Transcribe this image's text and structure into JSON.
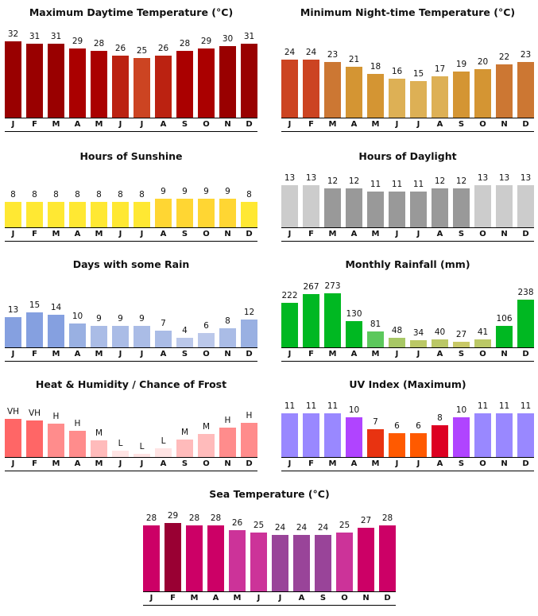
{
  "months": [
    "J",
    "F",
    "M",
    "A",
    "M",
    "J",
    "J",
    "A",
    "S",
    "O",
    "N",
    "D"
  ],
  "chart_data": [
    {
      "id": "max-temp",
      "type": "bar",
      "title": "Maximum Daytime Temperature (°C)",
      "categories": [
        "J",
        "F",
        "M",
        "A",
        "M",
        "J",
        "J",
        "A",
        "S",
        "O",
        "N",
        "D"
      ],
      "values": [
        32,
        31,
        31,
        29,
        28,
        26,
        25,
        26,
        28,
        29,
        30,
        31
      ],
      "labels": [
        "32",
        "31",
        "31",
        "29",
        "28",
        "26",
        "25",
        "26",
        "28",
        "29",
        "30",
        "31"
      ],
      "colors": [
        "#990000",
        "#990000",
        "#990000",
        "#aa0000",
        "#aa0000",
        "#bb2211",
        "#cc4422",
        "#bb2211",
        "#aa0000",
        "#aa0000",
        "#990000",
        "#990000"
      ],
      "xlabel": "",
      "ylabel": "",
      "ylim": [
        0,
        32
      ]
    },
    {
      "id": "min-temp",
      "type": "bar",
      "title": "Minimum Night-time Temperature (°C)",
      "categories": [
        "J",
        "F",
        "M",
        "A",
        "M",
        "J",
        "J",
        "A",
        "S",
        "O",
        "N",
        "D"
      ],
      "values": [
        24,
        24,
        23,
        21,
        18,
        16,
        15,
        17,
        19,
        20,
        22,
        23
      ],
      "labels": [
        "24",
        "24",
        "23",
        "21",
        "18",
        "16",
        "15",
        "17",
        "19",
        "20",
        "22",
        "23"
      ],
      "colors": [
        "#cc4422",
        "#cc4422",
        "#cc7733",
        "#d49533",
        "#d49533",
        "#ddb055",
        "#ddb055",
        "#ddb055",
        "#d49533",
        "#d49533",
        "#cc7733",
        "#cc7733"
      ],
      "xlabel": "",
      "ylabel": "",
      "ylim": [
        0,
        32
      ]
    },
    {
      "id": "sunshine",
      "type": "bar",
      "title": "Hours of Sunshine",
      "categories": [
        "J",
        "F",
        "M",
        "A",
        "M",
        "J",
        "J",
        "A",
        "S",
        "O",
        "N",
        "D"
      ],
      "values": [
        8,
        8,
        8,
        8,
        8,
        8,
        8,
        9,
        9,
        9,
        9,
        8
      ],
      "labels": [
        "8",
        "8",
        "8",
        "8",
        "8",
        "8",
        "8",
        "9",
        "9",
        "9",
        "9",
        "8"
      ],
      "colors": [
        "#ffe833",
        "#ffe833",
        "#ffe833",
        "#ffe833",
        "#ffe833",
        "#ffe833",
        "#ffe833",
        "#ffd633",
        "#ffd633",
        "#ffd633",
        "#ffd633",
        "#ffe833"
      ],
      "xlabel": "",
      "ylabel": "",
      "ylim": [
        0,
        14
      ]
    },
    {
      "id": "daylight",
      "type": "bar",
      "title": "Hours of Daylight",
      "categories": [
        "J",
        "F",
        "M",
        "A",
        "M",
        "J",
        "J",
        "A",
        "S",
        "O",
        "N",
        "D"
      ],
      "values": [
        13,
        13,
        12,
        12,
        11,
        11,
        11,
        12,
        12,
        13,
        13,
        13
      ],
      "labels": [
        "13",
        "13",
        "12",
        "12",
        "11",
        "11",
        "11",
        "12",
        "12",
        "13",
        "13",
        "13"
      ],
      "colors": [
        "#cccccc",
        "#cccccc",
        "#999999",
        "#999999",
        "#999999",
        "#999999",
        "#999999",
        "#999999",
        "#999999",
        "#cccccc",
        "#cccccc",
        "#cccccc"
      ],
      "xlabel": "",
      "ylabel": "",
      "ylim": [
        0,
        14
      ]
    },
    {
      "id": "rain-days",
      "type": "bar",
      "title": "Days with some Rain",
      "categories": [
        "J",
        "F",
        "M",
        "A",
        "M",
        "J",
        "J",
        "A",
        "S",
        "O",
        "N",
        "D"
      ],
      "values": [
        13,
        15,
        14,
        10,
        9,
        9,
        9,
        7,
        4,
        6,
        8,
        12
      ],
      "labels": [
        "13",
        "15",
        "14",
        "10",
        "9",
        "9",
        "9",
        "7",
        "4",
        "6",
        "8",
        "12"
      ],
      "colors": [
        "#85a0e0",
        "#85a0e0",
        "#85a0e0",
        "#99b0e2",
        "#aabce6",
        "#aabce6",
        "#aabce6",
        "#aabce6",
        "#bbc8ea",
        "#bbc8ea",
        "#aabce6",
        "#99b0e2"
      ],
      "xlabel": "",
      "ylabel": "",
      "ylim": [
        0,
        15
      ]
    },
    {
      "id": "rainfall",
      "type": "bar",
      "title": "Monthly Rainfall (mm)",
      "categories": [
        "J",
        "F",
        "M",
        "A",
        "M",
        "J",
        "J",
        "A",
        "S",
        "O",
        "N",
        "D"
      ],
      "values": [
        222,
        267,
        273,
        130,
        81,
        48,
        34,
        40,
        27,
        41,
        106,
        238
      ],
      "labels": [
        "222",
        "267",
        "273",
        "130",
        "81",
        "48",
        "34",
        "40",
        "27",
        "41",
        "106",
        "238"
      ],
      "colors": [
        "#00b822",
        "#00b822",
        "#00b822",
        "#00b822",
        "#5cc85c",
        "#a8c866",
        "#bbc866",
        "#bbc866",
        "#c8c866",
        "#bbc866",
        "#00b822",
        "#00b822"
      ],
      "xlabel": "",
      "ylabel": "",
      "ylim": [
        0,
        273
      ]
    },
    {
      "id": "heat-humidity",
      "type": "bar",
      "title": "Heat & Humidity / Chance of Frost",
      "categories": [
        "J",
        "F",
        "M",
        "A",
        "M",
        "J",
        "J",
        "A",
        "S",
        "O",
        "N",
        "D"
      ],
      "values": [
        48,
        46,
        42,
        33,
        21,
        8,
        4,
        11,
        22,
        29,
        37,
        43
      ],
      "labels": [
        "VH",
        "VH",
        "H",
        "H",
        "M",
        "L",
        "L",
        "L",
        "M",
        "M",
        "H",
        "H"
      ],
      "colors": [
        "#ff6666",
        "#ff6666",
        "#ff8c8c",
        "#ff8c8c",
        "#ffbbbb",
        "#ffe4e4",
        "#ffe4e4",
        "#ffe4e4",
        "#ffbbbb",
        "#ffbbbb",
        "#ff8c8c",
        "#ff8c8c"
      ],
      "xlabel": "",
      "ylabel": "",
      "ylim": [
        0,
        55
      ]
    },
    {
      "id": "uv-index",
      "type": "bar",
      "title": "UV Index (Maximum)",
      "categories": [
        "J",
        "F",
        "M",
        "A",
        "M",
        "J",
        "J",
        "A",
        "S",
        "O",
        "N",
        "D"
      ],
      "values": [
        11,
        11,
        11,
        10,
        7,
        6,
        6,
        8,
        10,
        11,
        11,
        11
      ],
      "labels": [
        "11",
        "11",
        "11",
        "10",
        "7",
        "6",
        "6",
        "8",
        "10",
        "11",
        "11",
        "11"
      ],
      "colors": [
        "#9988ff",
        "#9988ff",
        "#9988ff",
        "#b044ff",
        "#e83311",
        "#ff5a00",
        "#ff5a00",
        "#dd0022",
        "#b044ff",
        "#9988ff",
        "#9988ff",
        "#9988ff"
      ],
      "xlabel": "",
      "ylabel": "",
      "ylim": [
        0,
        11
      ]
    },
    {
      "id": "sea-temp",
      "type": "bar",
      "title": "Sea Temperature (°C)",
      "categories": [
        "J",
        "F",
        "M",
        "A",
        "M",
        "J",
        "J",
        "A",
        "S",
        "O",
        "N",
        "D"
      ],
      "values": [
        28,
        29,
        28,
        28,
        26,
        25,
        24,
        24,
        24,
        25,
        27,
        28
      ],
      "labels": [
        "28",
        "29",
        "28",
        "28",
        "26",
        "25",
        "24",
        "24",
        "24",
        "25",
        "27",
        "28"
      ],
      "colors": [
        "#cc0066",
        "#990033",
        "#cc0066",
        "#cc0066",
        "#cc3399",
        "#cc3399",
        "#994499",
        "#994499",
        "#994499",
        "#cc3399",
        "#cc0066",
        "#cc0066"
      ],
      "xlabel": "",
      "ylabel": "",
      "ylim": [
        0,
        29
      ]
    }
  ]
}
